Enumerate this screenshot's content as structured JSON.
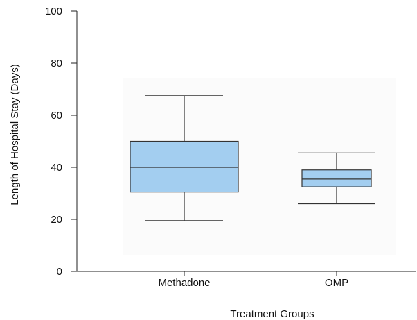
{
  "chart_data": {
    "type": "box",
    "xlabel": "Treatment Groups",
    "ylabel": "Length of Hospital Stay (Days)",
    "ylim": [
      0,
      100
    ],
    "yticks": [
      "0",
      "20",
      "40",
      "60",
      "80",
      "100"
    ],
    "categories": [
      "Methadone",
      "OMP"
    ],
    "boxes": [
      {
        "category": "Methadone",
        "min": 19.5,
        "q1": 30.5,
        "median": 40,
        "q3": 50,
        "max": 67.5
      },
      {
        "category": "OMP",
        "min": 26,
        "q1": 32.5,
        "median": 35.5,
        "q3": 39,
        "max": 45.5
      }
    ],
    "box_color": "#a3cef0",
    "plot_background": "#fbfbfb",
    "grid": false
  }
}
